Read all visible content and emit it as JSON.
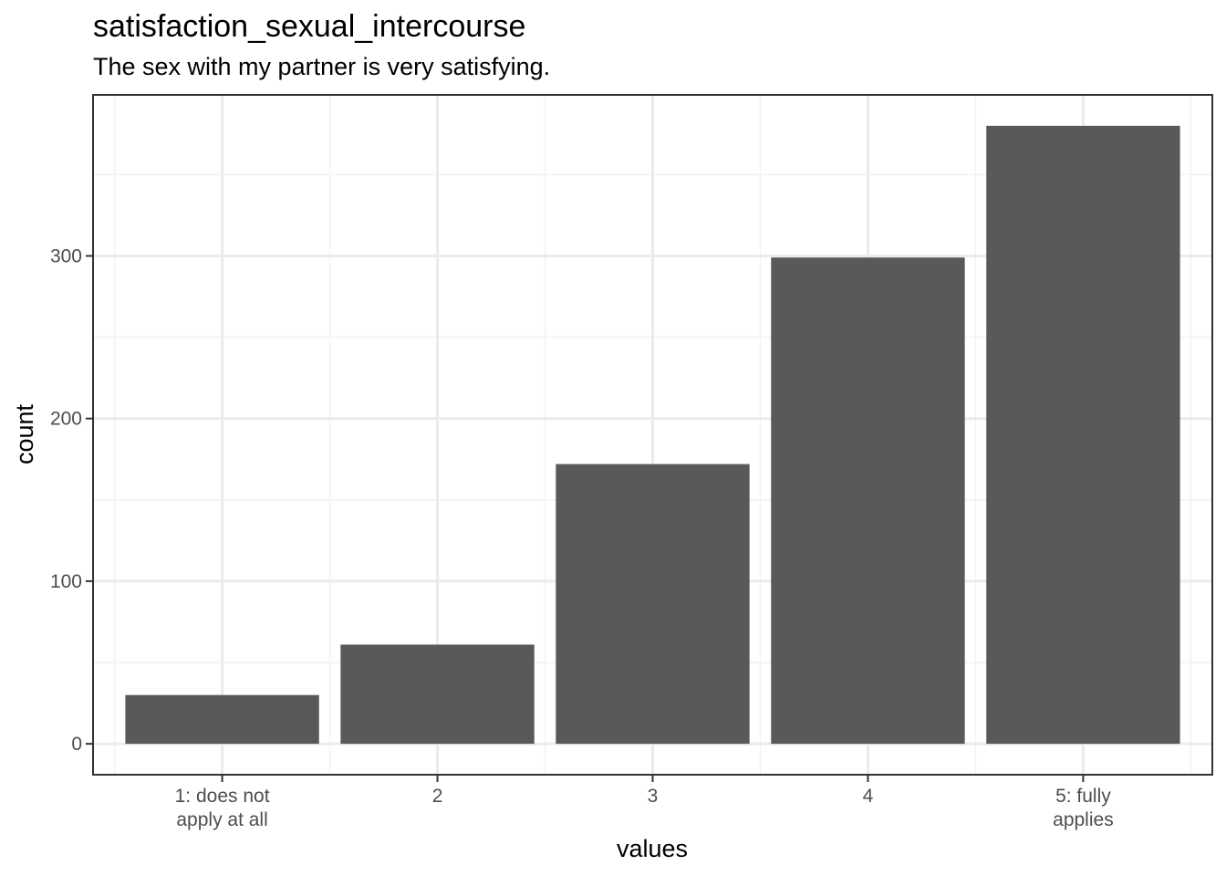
{
  "chart_data": {
    "type": "bar",
    "title": "satisfaction_sexual_intercourse",
    "subtitle": "The sex with my partner is very satisfying.",
    "xlabel": "values",
    "ylabel": "count",
    "categories": [
      [
        "1: does not",
        "apply at all"
      ],
      [
        "2"
      ],
      [
        "3"
      ],
      [
        "4"
      ],
      [
        "5: fully",
        "applies"
      ]
    ],
    "values": [
      30,
      61,
      172,
      299,
      380
    ],
    "yticks": [
      0,
      100,
      200,
      300
    ],
    "ylim": [
      -19,
      399
    ],
    "grid": true,
    "bar_color": "#595959"
  }
}
